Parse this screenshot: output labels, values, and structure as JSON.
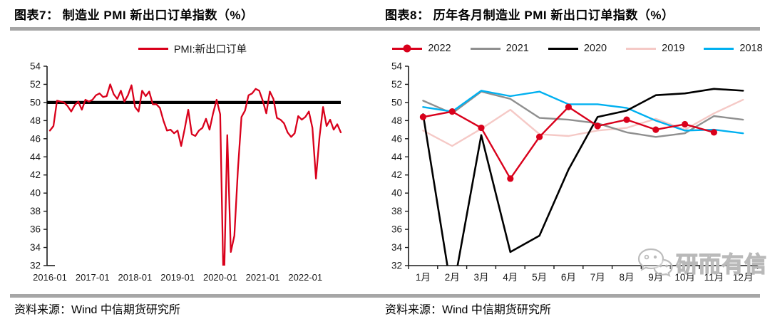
{
  "panels": {
    "left": {
      "title": "图表7： 制造业 PMI 新出口订单指数（%）",
      "source": "资料来源：Wind 中信期货研究所"
    },
    "right": {
      "title": "图表8： 历年各月制造业 PMI 新出口订单指数（%）",
      "source": "资料来源：Wind 中信期货研究所"
    }
  },
  "watermark": {
    "icon": "wechat-logo",
    "text": "研而有信",
    "color": "#bdbdbd"
  },
  "colors": {
    "divider": "#a6a6a6",
    "axis": "#1a1a1a",
    "reference_line": "#000000"
  },
  "chart_data": [
    {
      "type": "line",
      "title": "制造业PMI新出口订单指数（%）",
      "xlabel": "",
      "ylabel": "",
      "x_start": "2016-01",
      "x_end": "2022-11",
      "x_tick_labels": [
        "2016-01",
        "2017-01",
        "2018-01",
        "2019-01",
        "2020-01",
        "2021-01",
        "2022-01"
      ],
      "x_tick_positions": [
        0,
        12,
        24,
        36,
        48,
        60,
        72
      ],
      "ylim": [
        32,
        54
      ],
      "y_tick_step": 2,
      "grid": false,
      "legend_position": "top",
      "reference_line": {
        "y": 50,
        "color": "#000000"
      },
      "series": [
        {
          "name": "PMI:新出口订单",
          "color": "#d9001b",
          "marker": false,
          "values": [
            46.9,
            47.4,
            50.2,
            50.1,
            50.0,
            49.6,
            49.0,
            49.7,
            50.1,
            49.2,
            50.3,
            50.1,
            50.3,
            50.8,
            51.0,
            50.6,
            50.7,
            52.0,
            50.9,
            50.4,
            51.3,
            50.1,
            50.8,
            51.9,
            49.5,
            49.0,
            51.3,
            50.7,
            51.2,
            49.8,
            49.8,
            49.4,
            48.0,
            46.9,
            47.0,
            46.6,
            46.9,
            45.2,
            47.1,
            49.2,
            46.5,
            46.3,
            46.9,
            47.2,
            48.2,
            47.0,
            48.8,
            50.3,
            48.7,
            28.7,
            46.4,
            33.5,
            35.3,
            42.6,
            48.4,
            49.1,
            50.8,
            51.0,
            51.5,
            51.3,
            50.2,
            48.8,
            51.2,
            50.4,
            48.3,
            48.1,
            47.7,
            46.7,
            46.2,
            46.6,
            48.5,
            48.1,
            48.4,
            49.0,
            47.2,
            41.6,
            46.2,
            49.5,
            47.4,
            48.1,
            47.0,
            47.6,
            46.7
          ]
        }
      ]
    },
    {
      "type": "line",
      "title": "历年各月制造业PMI新出口订单指数（%）",
      "xlabel": "",
      "ylabel": "",
      "categories": [
        "1月",
        "2月",
        "3月",
        "4月",
        "5月",
        "6月",
        "7月",
        "8月",
        "9月",
        "10月",
        "11月",
        "12月"
      ],
      "ylim": [
        32,
        54
      ],
      "y_tick_step": 2,
      "grid": false,
      "legend_position": "top",
      "series": [
        {
          "name": "2022",
          "color": "#d9001b",
          "marker": true,
          "values": [
            48.4,
            49.0,
            47.2,
            41.6,
            46.2,
            49.5,
            47.4,
            48.1,
            47.0,
            47.6,
            46.7
          ]
        },
        {
          "name": "2021",
          "color": "#8f8f8f",
          "marker": false,
          "values": [
            50.2,
            48.8,
            51.2,
            50.4,
            48.3,
            48.1,
            47.7,
            46.7,
            46.2,
            46.6,
            48.5,
            48.1
          ]
        },
        {
          "name": "2020",
          "color": "#000000",
          "marker": false,
          "values": [
            48.7,
            28.7,
            46.4,
            33.5,
            35.3,
            42.6,
            48.4,
            49.1,
            50.8,
            51.0,
            51.5,
            51.3
          ]
        },
        {
          "name": "2019",
          "color": "#f5c9c6",
          "marker": false,
          "values": [
            46.9,
            45.2,
            47.1,
            49.2,
            46.5,
            46.3,
            46.9,
            47.2,
            48.2,
            47.0,
            48.8,
            50.3
          ]
        },
        {
          "name": "2018",
          "color": "#00b0f0",
          "marker": false,
          "values": [
            49.5,
            49.0,
            51.3,
            50.7,
            51.2,
            49.8,
            49.8,
            49.4,
            48.0,
            46.9,
            47.0,
            46.6
          ]
        }
      ]
    }
  ]
}
